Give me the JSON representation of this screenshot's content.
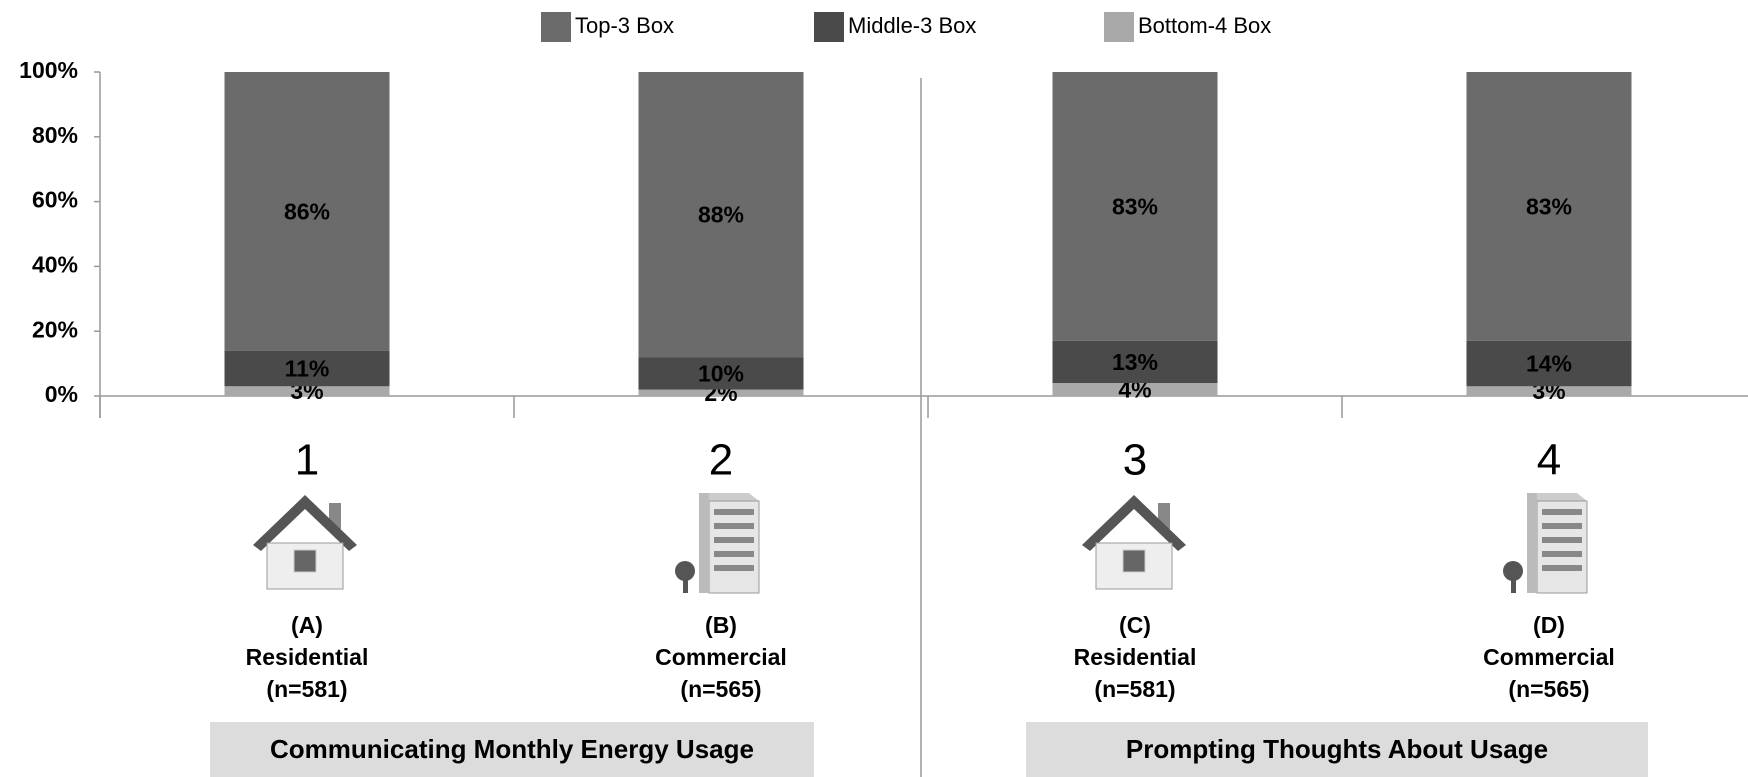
{
  "chart_data": {
    "type": "stacked_bar",
    "categories": [
      "1",
      "2",
      "3",
      "4"
    ],
    "category_details": [
      {
        "letter": "(A)",
        "label": "Residential",
        "n": "(n=581)"
      },
      {
        "letter": "(B)",
        "label": "Commercial",
        "n": "(n=565)"
      },
      {
        "letter": "(C)",
        "label": "Residential",
        "n": "(n=581)"
      },
      {
        "letter": "(D)",
        "label": "Commercial",
        "n": "(n=565)"
      }
    ],
    "groups": [
      {
        "label": "Communicating Monthly Energy Usage"
      },
      {
        "label": "Prompting Thoughts About Usage"
      }
    ],
    "series": [
      {
        "name": "Top-3 Box",
        "color": "#6b6b6b",
        "values": [
          86,
          88,
          83,
          83
        ],
        "value_labels": [
          "86%",
          "88%",
          "83%",
          "83%"
        ]
      },
      {
        "name": "Middle-3 Box",
        "color": "#4a4a4a",
        "values": [
          11,
          10,
          13,
          14
        ],
        "value_labels": [
          "11%",
          "10%",
          "13%",
          "14%"
        ]
      },
      {
        "name": "Bottom-4 Box",
        "color": "#a9a9a9",
        "values": [
          3,
          2,
          4,
          3
        ],
        "value_labels": [
          "3%",
          "2%",
          "4%",
          "3%"
        ]
      }
    ],
    "ylim": [
      0,
      100
    ],
    "yticks": [
      {
        "value": 0,
        "label": "0%"
      },
      {
        "value": 20,
        "label": "20%"
      },
      {
        "value": 40,
        "label": "40%"
      },
      {
        "value": 60,
        "label": "60%"
      },
      {
        "value": 80,
        "label": "80%"
      },
      {
        "value": 100,
        "label": "100%"
      }
    ],
    "legend": "top"
  }
}
